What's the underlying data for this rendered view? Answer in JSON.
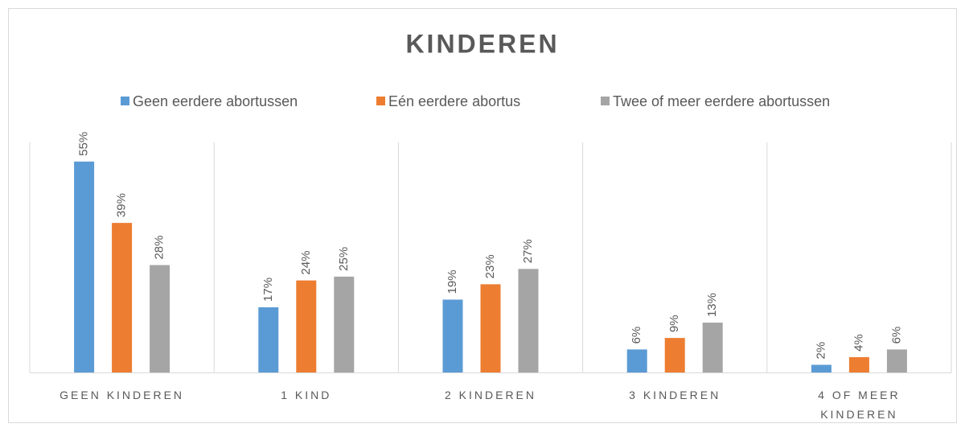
{
  "chart_data": {
    "type": "bar",
    "title": "KINDEREN",
    "categories": [
      "GEEN KINDEREN",
      "1 KIND",
      "2 KINDEREN",
      "3 KINDEREN",
      "4 OF MEER KINDEREN"
    ],
    "series": [
      {
        "name": "Geen eerdere abortussen",
        "color": "#5b9bd5",
        "values": [
          55,
          17,
          19,
          6,
          2
        ],
        "value_labels": [
          "55%",
          "17%",
          "19%",
          "6%",
          "2%"
        ]
      },
      {
        "name": "Eén eerdere abortus",
        "color": "#ed7d31",
        "values": [
          39,
          24,
          23,
          9,
          4
        ],
        "value_labels": [
          "39%",
          "24%",
          "23%",
          "9%",
          "4%"
        ]
      },
      {
        "name": "Twee of meer eerdere abortussen",
        "color": "#a5a5a5",
        "values": [
          28,
          25,
          27,
          13,
          6
        ],
        "value_labels": [
          "28%",
          "25%",
          "27%",
          "13%",
          "6%"
        ]
      }
    ],
    "ylim": [
      0,
      60
    ],
    "legend": "top"
  }
}
